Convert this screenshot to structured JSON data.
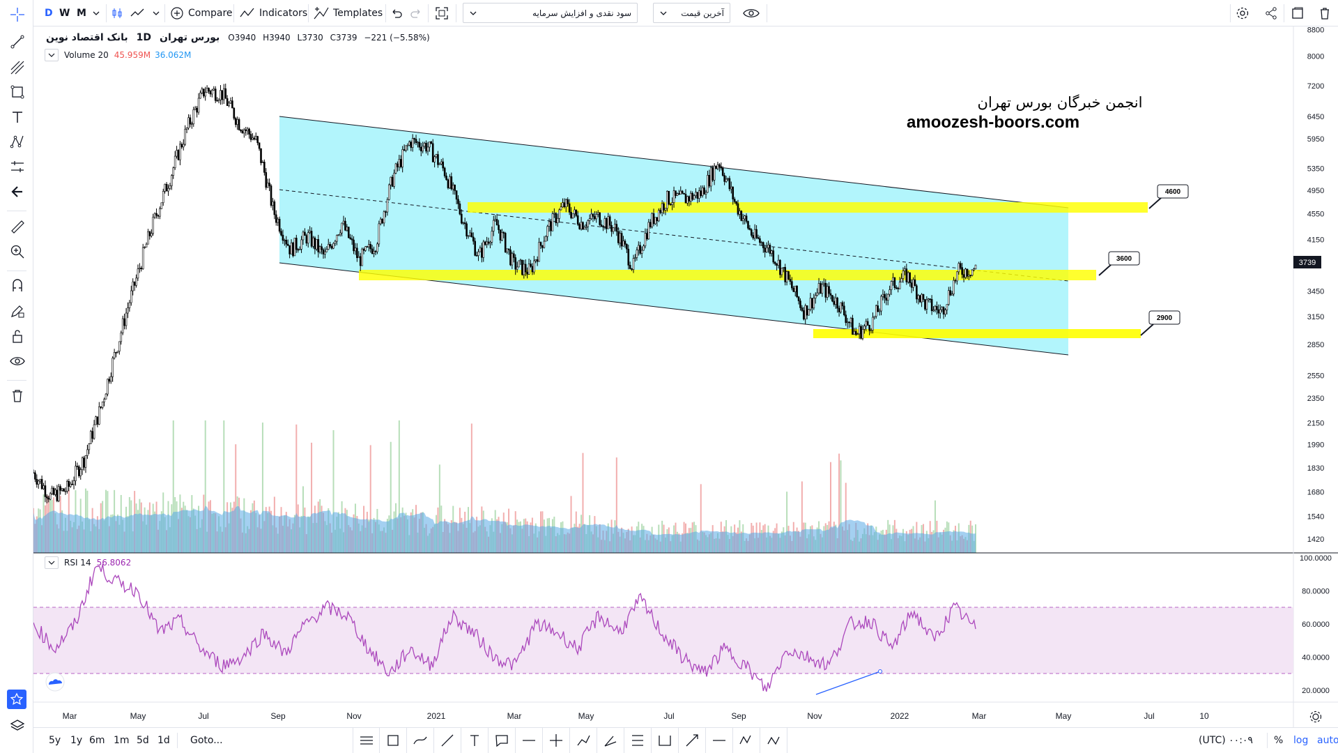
{
  "toolbar": {
    "intervals": [
      "D",
      "W",
      "M"
    ],
    "compare": "Compare",
    "indicators": "Indicators",
    "templates": "Templates",
    "dropdown1": "سود نقدی و افزایش سرمایه",
    "dropdown2": "آخرین قیمت"
  },
  "legend": {
    "symbol": "بانک اقتصاد نوین",
    "interval": "1D",
    "exchange": "بورس تهران",
    "o_label": "O",
    "o": "3940",
    "h_label": "H",
    "h": "3940",
    "l_label": "L",
    "l": "3730",
    "c_label": "C",
    "c": "3739",
    "change": "−221 (−5.58%)",
    "volume_name": "Volume 20",
    "volume_v1": "45.959M",
    "volume_v2": "36.062M",
    "rsi_name": "RSI 14",
    "rsi_value": "56.8062"
  },
  "watermark": {
    "line1": "انجمن خبرگان بورس تهران",
    "line2": "amoozesh-boors.com"
  },
  "price_axis": {
    "ticks": [
      "8800",
      "8000",
      "7200",
      "6450",
      "5950",
      "5350",
      "4950",
      "4550",
      "4150",
      "3450",
      "3150",
      "2850",
      "2550",
      "2350",
      "2150",
      "1990",
      "1830",
      "1680",
      "1540",
      "1420"
    ],
    "current": "3739"
  },
  "rsi_axis": {
    "ticks": [
      "100.0000",
      "80.0000",
      "60.0000",
      "40.0000",
      "20.0000"
    ]
  },
  "time_axis": {
    "ticks": [
      "Mar",
      "May",
      "Jul",
      "Sep",
      "Nov",
      "2021",
      "Mar",
      "May",
      "Jul",
      "Sep",
      "Nov",
      "2022",
      "Mar",
      "May",
      "Jul",
      "10"
    ]
  },
  "annotations": {
    "top": "4600",
    "mid": "3600",
    "low": "2900"
  },
  "bottom": {
    "ranges": [
      "5y",
      "1y",
      "6m",
      "1m",
      "5d",
      "1d"
    ],
    "goto": "Goto...",
    "time": "۰۰:۰۹ (UTC)",
    "percent": "%",
    "log": "log",
    "auto": "auto"
  },
  "chart_data": {
    "type": "candlestick",
    "price_range": [
      1350,
      8900
    ],
    "scale": "log",
    "series": [
      {
        "name": "price",
        "close": [
          1800,
          1650,
          1700,
          1900,
          2300,
          2900,
          3600,
          4400,
          5200,
          6200,
          7100,
          7000,
          6300,
          5900,
          4600,
          4000,
          4200,
          3900,
          4400,
          3850,
          4100,
          5200,
          5900,
          5800,
          5300,
          4500,
          3900,
          4400,
          3800,
          3700,
          4300,
          4700,
          4400,
          4500,
          4300,
          3750,
          4400,
          4800,
          4800,
          4900,
          5500,
          4700,
          4200,
          4000,
          3600,
          3200,
          3500,
          3300,
          2950,
          3100,
          3500,
          3650,
          3300,
          3200,
          3700,
          3739
        ]
      },
      {
        "name": "RSI 14",
        "values": [
          60,
          45,
          60,
          95,
          85,
          80,
          55,
          62,
          45,
          35,
          40,
          55,
          42,
          60,
          70,
          65,
          45,
          30,
          45,
          35,
          65,
          55,
          40,
          35,
          60,
          55,
          45,
          65,
          55,
          75,
          55,
          40,
          30,
          45,
          35,
          20,
          45,
          40,
          35,
          60,
          62,
          45,
          68,
          50,
          70,
          57
        ]
      }
    ]
  },
  "colors": {
    "bull": "#26a69a",
    "bear": "#ef5350",
    "channel": "#b2f5fc",
    "zone": "#ffff00",
    "rsi": "#9c27b0",
    "rsiband": "#f3e5f5"
  }
}
